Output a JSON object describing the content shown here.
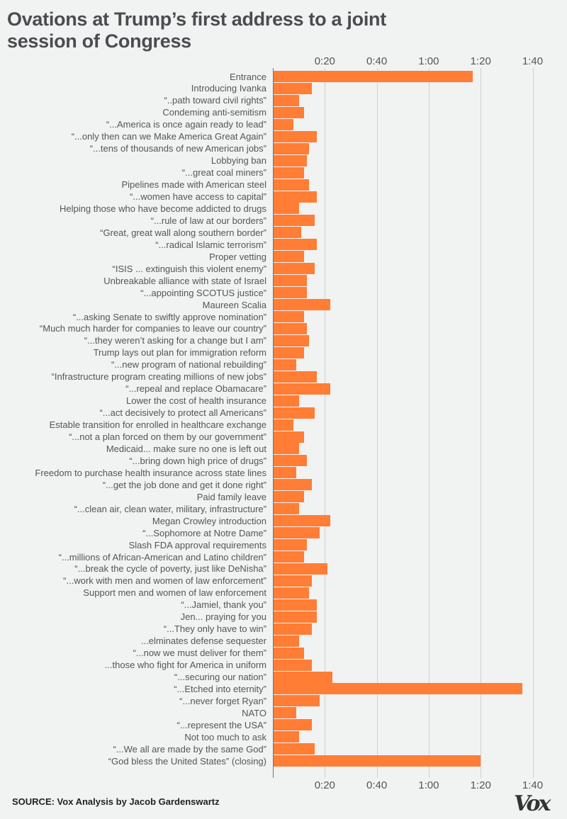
{
  "title": "Ovations at Trump’s first address to a joint session of Congress",
  "source": "SOURCE: Vox Analysis by Jacob Gardenswartz",
  "logo": "Vox",
  "colors": {
    "bar": "#ff7d35",
    "background": "#f1f2f2"
  },
  "chart_data": {
    "type": "bar",
    "orientation": "horizontal",
    "title": "Ovations at Trump’s first address to a joint session of Congress",
    "xlabel": "",
    "ylabel": "",
    "unit": "seconds",
    "xlim": [
      0,
      105
    ],
    "grid": true,
    "ticks": [
      {
        "value": 20,
        "label": "0:20"
      },
      {
        "value": 40,
        "label": "0:40"
      },
      {
        "value": 60,
        "label": "1:00"
      },
      {
        "value": 80,
        "label": "1:20"
      },
      {
        "value": 100,
        "label": "1:40"
      }
    ],
    "categories": [
      "Entrance",
      "Introducing Ivanka",
      "“..path toward civil rights”",
      "Condeming anti-semitism",
      "“...America is once again ready to lead”",
      "“...only then can we Make America Great Again”",
      "“...tens of thousands of new American jobs”",
      "Lobbying ban",
      "“...great coal miners”",
      "Pipelines made with American steel",
      "“...women have access to capital”",
      "Helping those who have become addicted to drugs",
      "“...rule of law at our borders”",
      "“Great, great wall along southern border”",
      "“...radical Islamic terrorism”",
      "Proper vetting",
      "“ISIS ... extinguish this violent enemy”",
      "Unbreakable alliance with state of Israel",
      "“...appointing SCOTUS justice”",
      "Maureen Scalia",
      "“...asking Senate to swiftly approve nomination”",
      "“Much much harder for companies to leave our country”",
      "“...they weren’t asking for a change but I am”",
      "Trump lays out plan for immigration reform",
      "“...new program of national rebuilding”",
      "“Infrastructure program creating millions of new jobs”",
      "“...repeal and replace Obamacare”",
      "Lower the cost of health insurance",
      "“...act decisively to protect all Americans”",
      "Estable transition for enrolled in healthcare exchange",
      "“...not a plan forced on them by our government”",
      "Medicaid... make sure no one is left out",
      "“...bring down high price of drugs”",
      "Freedom to purchase health insurance across state lines",
      "“...get the job done and get it done right”",
      "Paid family leave",
      "“...clean air, clean water, military, infrastructure”",
      "Megan Crowley introduction",
      "“...Sophomore at Notre Dame”",
      "Slash FDA approval requirements",
      "“...millions of African-American and Latino children”",
      "“...break the cycle of poverty, just like DeNisha”",
      "“...work with men and women of law enforcement”",
      "Support men and women of law enforcement",
      "“...Jamiel, thank you”",
      "Jen... praying for you",
      "“...They only have to win”",
      "...elminates defense sequester",
      "“...now we must deliver for them”",
      "...those who fight for America in uniform",
      "“...securing our nation”",
      "“...Etched into eternity”",
      "“...never forget Ryan”",
      "NATO",
      "“...represent the USA”",
      "Not too much to ask",
      "“...We all are made by the same God”",
      "“God bless the United States” (closing)"
    ],
    "values": [
      77,
      15,
      10,
      12,
      8,
      17,
      14,
      13,
      12,
      14,
      17,
      10,
      16,
      11,
      17,
      12,
      16,
      13,
      13,
      22,
      12,
      13,
      14,
      12,
      9,
      17,
      22,
      10,
      16,
      8,
      12,
      10,
      13,
      9,
      15,
      12,
      10,
      22,
      18,
      13,
      12,
      21,
      15,
      14,
      17,
      17,
      15,
      10,
      12,
      15,
      23,
      96,
      18,
      9,
      15,
      10,
      16,
      80
    ]
  }
}
